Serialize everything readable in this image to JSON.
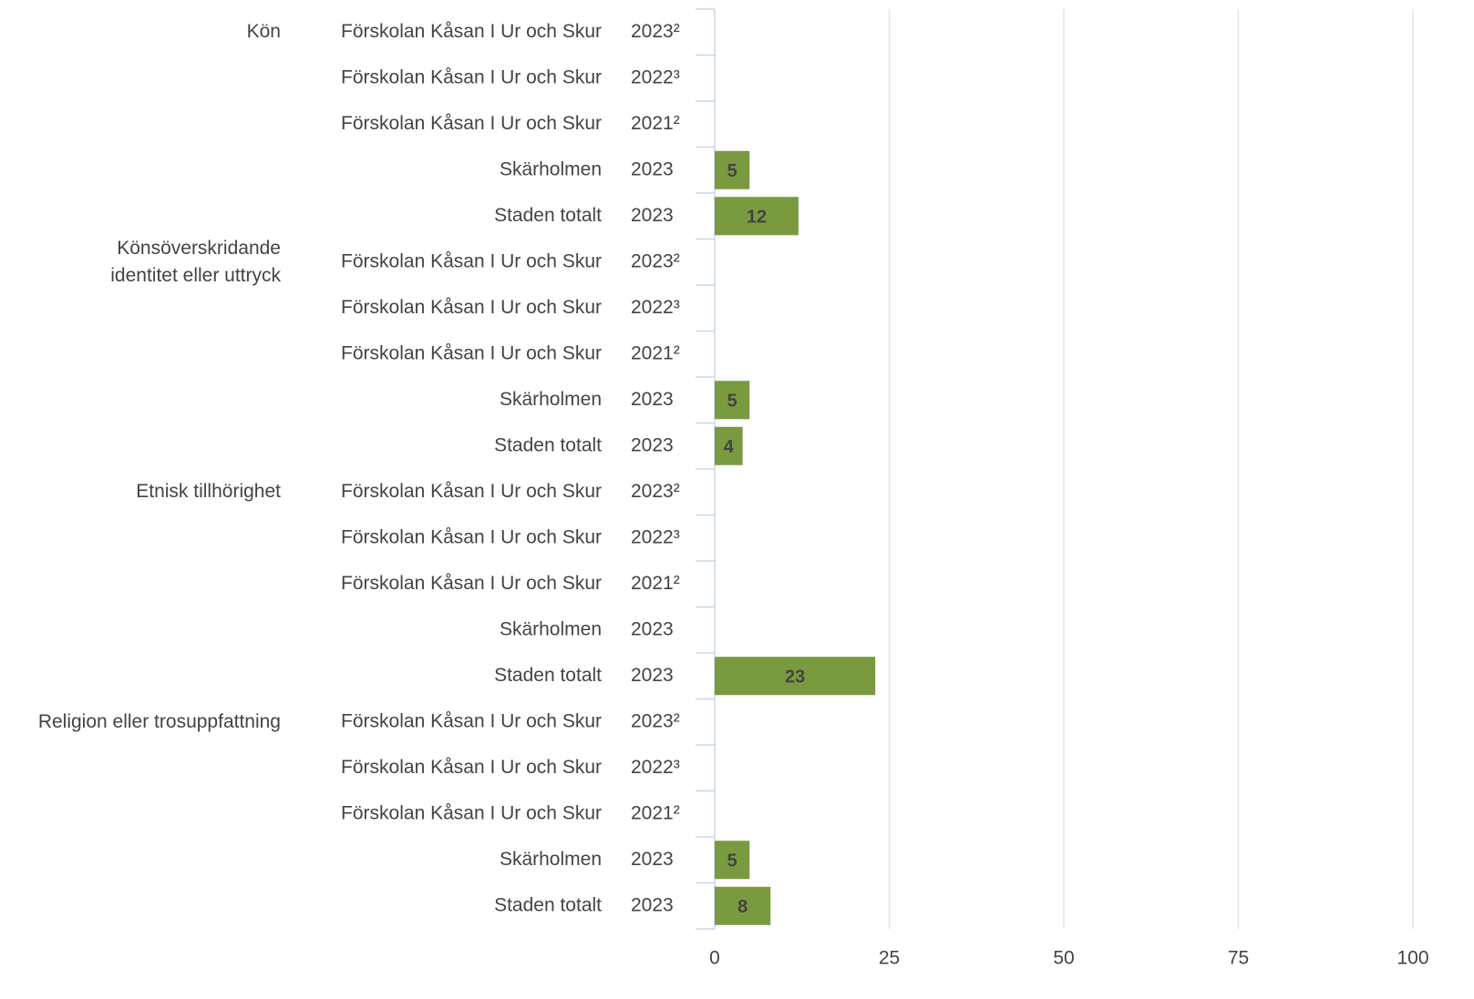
{
  "chart_data": {
    "type": "bar",
    "orientation": "horizontal",
    "groups": [
      "Kön",
      "Könsöverskridande\nidentitet eller uttryck",
      "Etnisk tillhörighet",
      "Religion eller trosuppfattning"
    ],
    "categories": [
      "Förskolan Kåsan I Ur och Skur",
      "Förskolan Kåsan I Ur och Skur",
      "Förskolan Kåsan I Ur och Skur",
      "Skärholmen",
      "Staden totalt",
      "Förskolan Kåsan I Ur och Skur",
      "Förskolan Kåsan I Ur och Skur",
      "Förskolan Kåsan I Ur och Skur",
      "Skärholmen",
      "Staden totalt",
      "Förskolan Kåsan I Ur och Skur",
      "Förskolan Kåsan I Ur och Skur",
      "Förskolan Kåsan I Ur och Skur",
      "Skärholmen",
      "Staden totalt",
      "Förskolan Kåsan I Ur och Skur",
      "Förskolan Kåsan I Ur och Skur",
      "Förskolan Kåsan I Ur och Skur",
      "Skärholmen",
      "Staden totalt"
    ],
    "years": [
      "2023²",
      "2022³",
      "2021²",
      "2023",
      "2023",
      "2023²",
      "2022³",
      "2021²",
      "2023",
      "2023",
      "2023²",
      "2022³",
      "2021²",
      "2023",
      "2023",
      "2023²",
      "2022³",
      "2021²",
      "2023",
      "2023"
    ],
    "values": [
      null,
      null,
      null,
      5,
      12,
      null,
      null,
      null,
      5,
      4,
      null,
      null,
      null,
      null,
      23,
      null,
      null,
      null,
      5,
      8
    ],
    "color": "#7a9a3f",
    "xlim": [
      0,
      100
    ],
    "xticks": [
      0,
      25,
      50,
      75,
      100
    ],
    "grid": true
  }
}
